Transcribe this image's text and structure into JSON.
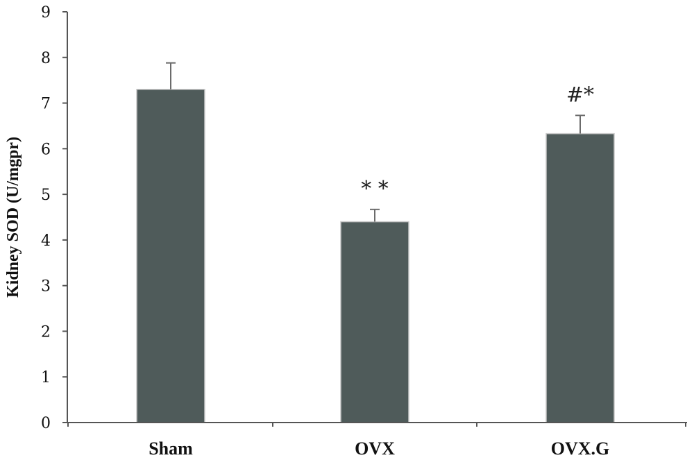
{
  "chart_data": {
    "type": "bar",
    "title": "",
    "xlabel": "",
    "ylabel": "Kidney SOD (U/mgpr)",
    "ylim": [
      0,
      9
    ],
    "yticks": [
      0,
      1,
      2,
      3,
      4,
      5,
      6,
      7,
      8,
      9
    ],
    "grid": false,
    "categories": [
      "Sham",
      "OVX",
      "OVX.G"
    ],
    "values": [
      7.3,
      4.4,
      6.33
    ],
    "error_upper": [
      0.58,
      0.27,
      0.4
    ],
    "annotations": [
      "",
      "* *",
      "#*"
    ],
    "colors": {
      "bar": "#4f5b5a",
      "bar_edge": "#c7c7c7",
      "axis": "#555555",
      "error_bar": "#6b6b6b"
    }
  }
}
